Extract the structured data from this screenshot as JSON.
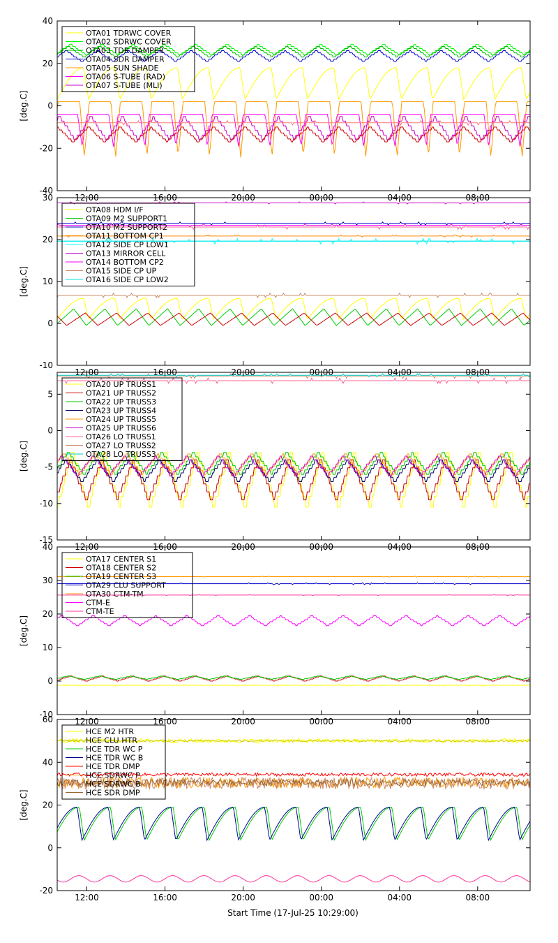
{
  "chart_data": {
    "type": "line",
    "xlabel": "Start Time (17-Jul-25 10:29:00)",
    "x_tick_labels": [
      "12:00",
      "16:00",
      "20:00",
      "00:00",
      "04:00",
      "08:00"
    ],
    "x_ticks_hours": [
      1.5167,
      5.5167,
      9.5167,
      13.5167,
      17.5167,
      21.5167
    ],
    "xlim_hours": [
      0,
      24.2
    ],
    "panels": [
      {
        "ylabel": "[deg.C]",
        "ylim": [
          -40,
          40
        ],
        "yticks": [
          -40,
          -20,
          0,
          20,
          40
        ],
        "legend_position": "top-left",
        "period_hours": 1.6,
        "series": [
          {
            "name": "OTA01 TDRWC COVER",
            "color": "#ffff00",
            "shape": "sawtooth",
            "min": 3,
            "max": 18
          },
          {
            "name": "OTA02 SDRWC COVER",
            "color": "#00ff00",
            "shape": "step",
            "min": 24,
            "max": 29
          },
          {
            "name": "OTA03 TDR DAMPER",
            "color": "#00c000",
            "shape": "step",
            "min": 23,
            "max": 28
          },
          {
            "name": "OTA04 SDR DAMPER",
            "color": "#0000cc",
            "shape": "step",
            "min": 21,
            "max": 26
          },
          {
            "name": "OTA05 SUN SHADE",
            "color": "#ff9900",
            "shape": "dip",
            "min": -29,
            "max": 2
          },
          {
            "name": "OTA06 S-TUBE (RAD)",
            "color": "#ff00ff",
            "shape": "dip",
            "min": -22,
            "max": -4
          },
          {
            "name": "OTA07 S-TUBE (MLI)",
            "color": "#cc00cc",
            "shape": "step",
            "min": -16,
            "max": -5
          },
          {
            "name": "",
            "color": "#cc0000",
            "shape": "step",
            "min": -17,
            "max": -10
          },
          {
            "name": "",
            "color": "#ff7777",
            "shape": "flat",
            "min": -9,
            "max": -7
          }
        ]
      },
      {
        "ylabel": "[deg.C]",
        "ylim": [
          -10,
          30
        ],
        "yticks": [
          -10,
          0,
          10,
          20,
          30
        ],
        "legend_position": "top-left",
        "period_hours": 1.6,
        "series": [
          {
            "name": "OTA08 HDM I/F",
            "color": "#ffff00",
            "shape": "sawtooth",
            "min": 1,
            "max": 6
          },
          {
            "name": "OTA09 M2 SUPPORT1",
            "color": "#00cc00",
            "shape": "bump",
            "min": -0.5,
            "max": 3.5
          },
          {
            "name": "OTA10 M2 SUPPORT2",
            "color": "#0000cc",
            "shape": "flat",
            "min": 23.5,
            "max": 24.2
          },
          {
            "name": "OTA11 BOTTOM CP1",
            "color": "#ff8800",
            "shape": "flat",
            "min": 20.6,
            "max": 21.1
          },
          {
            "name": "OTA12 SIDE CP LOW1",
            "color": "#00ffff",
            "shape": "flat",
            "min": 19,
            "max": 20.2
          },
          {
            "name": "OTA13 MIRROR CELL",
            "color": "#cc00cc",
            "shape": "flat",
            "min": 28.5,
            "max": 29
          },
          {
            "name": "OTA14 BOTTOM CP2",
            "color": "#ff00ff",
            "shape": "flat",
            "min": 23,
            "max": 23.8
          },
          {
            "name": "OTA15 SIDE CP UP",
            "color": "#cc8866",
            "shape": "flat",
            "min": 6.2,
            "max": 7.2
          },
          {
            "name": "OTA16 SIDE CP LOW2",
            "color": "#00e5e5",
            "shape": "flat",
            "min": 19.3,
            "max": 20
          },
          {
            "name": "",
            "color": "#ff6699",
            "shape": "flat",
            "min": 22.5,
            "max": 23.5
          },
          {
            "name": "",
            "color": "#cc0000",
            "shape": "bump",
            "min": -0.5,
            "max": 2.5
          }
        ]
      },
      {
        "ylabel": "[deg.C]",
        "ylim": [
          -15,
          8
        ],
        "yticks": [
          -15,
          -10,
          -5,
          0,
          5
        ],
        "legend_position": "top-left",
        "period_hours": 1.6,
        "series": [
          {
            "name": "OTA20 UP TRUSS1",
            "color": "#ffff00",
            "shape": "step",
            "min": -10.5,
            "max": -3
          },
          {
            "name": "OTA21 UP TRUSS2",
            "color": "#cc0000",
            "shape": "step",
            "min": -9.5,
            "max": -4
          },
          {
            "name": "OTA22 UP TRUSS3",
            "color": "#00cc00",
            "shape": "step",
            "min": -6,
            "max": -3
          },
          {
            "name": "OTA23 UP TRUSS4",
            "color": "#000066",
            "shape": "step",
            "min": -7,
            "max": -4
          },
          {
            "name": "OTA24 UP TRUSS5",
            "color": "#ff9900",
            "shape": "step",
            "min": -6,
            "max": -3.2
          },
          {
            "name": "OTA25 UP TRUSS6",
            "color": "#cc00cc",
            "shape": "step",
            "min": -6.2,
            "max": -3.5
          },
          {
            "name": "OTA26 LO TRUSS1",
            "color": "#ff6699",
            "shape": "flat",
            "min": 6.5,
            "max": 7.2
          },
          {
            "name": "OTA27 LO TRUSS2",
            "color": "#cc8866",
            "shape": "flat",
            "min": 7.2,
            "max": 7.8
          },
          {
            "name": "OTA28 LO TRUSS3",
            "color": "#00cccc",
            "shape": "flat",
            "min": 7.4,
            "max": 7.8
          }
        ]
      },
      {
        "ylabel": "[deg.C]",
        "ylim": [
          -10,
          40
        ],
        "yticks": [
          -10,
          0,
          10,
          20,
          30,
          40
        ],
        "legend_position": "top-left",
        "period_hours": 1.6,
        "series": [
          {
            "name": "OTA17 CENTER S1",
            "color": "#ffff00",
            "shape": "flat",
            "min": -1.5,
            "max": -1
          },
          {
            "name": "OTA18 CENTER S2",
            "color": "#cc0000",
            "shape": "step",
            "min": 0,
            "max": 1.5
          },
          {
            "name": "OTA19 CENTER S3",
            "color": "#00cc00",
            "shape": "step",
            "min": 0.5,
            "max": 1.5
          },
          {
            "name": "OTA29 CLU SUPPORT",
            "color": "#0000cc",
            "shape": "flat",
            "min": 28.8,
            "max": 29.3
          },
          {
            "name": "OTA30 CTM-TM",
            "color": "#ff9900",
            "shape": "flat",
            "min": 31,
            "max": 31.3
          },
          {
            "name": "CTM-E",
            "color": "#ff00ff",
            "shape": "step",
            "min": 16.5,
            "max": 19.5
          },
          {
            "name": "CTM-TE",
            "color": "#ff3399",
            "shape": "flat",
            "min": 25.5,
            "max": 25.8
          }
        ]
      },
      {
        "ylabel": "[deg.C]",
        "ylim": [
          -20,
          60
        ],
        "yticks": [
          -20,
          0,
          20,
          40,
          60
        ],
        "legend_position": "top-left",
        "period_hours": 1.6,
        "series": [
          {
            "name": "HCE M2 HTR",
            "color": "#ffff00",
            "shape": "noise",
            "min": 49,
            "max": 51
          },
          {
            "name": "HCE CLU HTR",
            "color": "#cccc00",
            "shape": "noise",
            "min": 49.5,
            "max": 50.5
          },
          {
            "name": "HCE TDR WC P",
            "color": "#00cc00",
            "shape": "sawtooth",
            "min": 3.5,
            "max": 19
          },
          {
            "name": "HCE TDR WC B",
            "color": "#000099",
            "shape": "sawtooth",
            "min": 3.5,
            "max": 19
          },
          {
            "name": "HCE TDR DMP",
            "color": "#ff0000",
            "shape": "noise",
            "min": 33.5,
            "max": 35
          },
          {
            "name": "HCE SDRWC P",
            "color": "#ff9900",
            "shape": "noise",
            "min": 28,
            "max": 33
          },
          {
            "name": "HCE SDRWC B",
            "color": "#cc8866",
            "shape": "noise",
            "min": 27.5,
            "max": 33
          },
          {
            "name": "HCE SDR DMP",
            "color": "#996633",
            "shape": "noise",
            "min": 29,
            "max": 32
          },
          {
            "name": "",
            "color": "#ff3399",
            "shape": "wave",
            "min": -16,
            "max": -13
          }
        ]
      }
    ]
  }
}
